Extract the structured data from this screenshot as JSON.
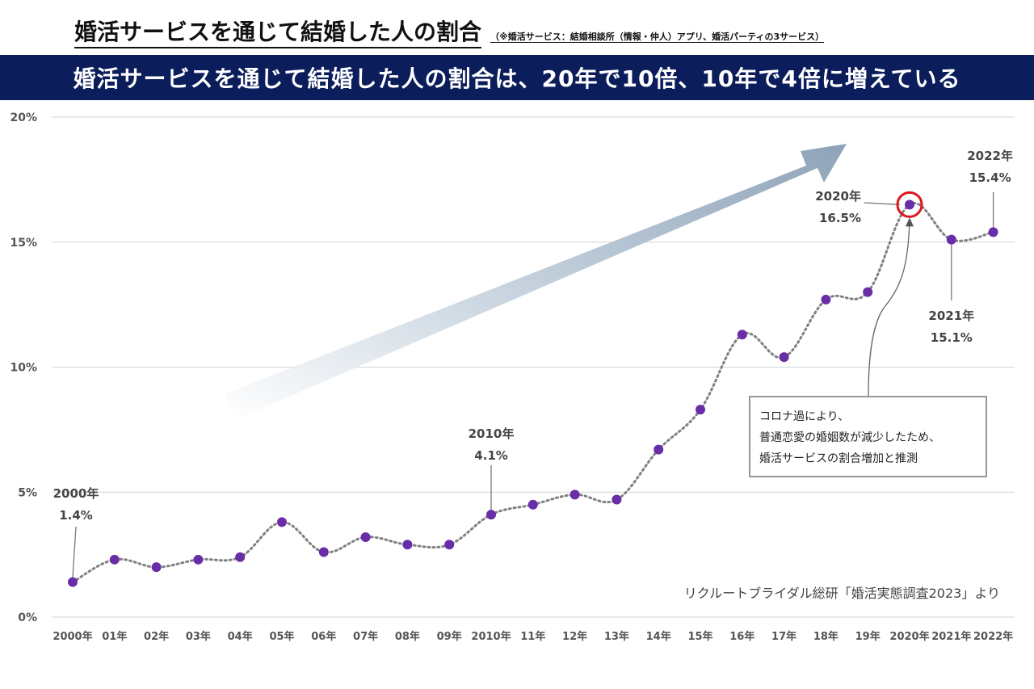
{
  "title": "婚活サービスを通じて結婚した人の割合",
  "title_note": "（※婚活サービス：結婚相談所（情報・仲人）アプリ、婚活パーティの3サービス）",
  "banner": "婚活サービスを通じて結婚した人の割合は、20年で10倍、10年で4倍に増えている",
  "source": "リクルートブライダル総研「婚活実態調査2023」より",
  "callout": {
    "lines": [
      "コロナ過により、",
      "普通恋愛の婚姻数が減少したため、",
      "婚活サービスの割合増加と推測"
    ]
  },
  "colors": {
    "banner": "#0b1e5b",
    "point": "#6a2da8",
    "line": "#808080",
    "highlight": "#e0141e",
    "arrow": "#8ea3b8"
  },
  "chart_data": {
    "type": "line",
    "categories": [
      "2000年",
      "01年",
      "02年",
      "03年",
      "04年",
      "05年",
      "06年",
      "07年",
      "08年",
      "09年",
      "2010年",
      "11年",
      "12年",
      "13年",
      "14年",
      "15年",
      "16年",
      "17年",
      "18年",
      "19年",
      "2020年",
      "2021年",
      "2022年"
    ],
    "values": [
      1.4,
      2.3,
      2.0,
      2.3,
      2.4,
      3.8,
      2.6,
      3.2,
      2.9,
      2.9,
      4.1,
      4.5,
      4.9,
      4.7,
      6.7,
      8.3,
      11.3,
      10.4,
      12.7,
      13.0,
      16.5,
      15.1,
      15.4
    ],
    "ylim": [
      0,
      20
    ],
    "yticks": [
      "0%",
      "5%",
      "10%",
      "15%",
      "20%"
    ],
    "grid": true,
    "annotations": [
      {
        "index": 0,
        "year": "2000年",
        "value": "1.4%"
      },
      {
        "index": 10,
        "year": "2010年",
        "value": "4.1%"
      },
      {
        "index": 20,
        "year": "2020年",
        "value": "16.5%"
      },
      {
        "index": 21,
        "year": "2021年",
        "value": "15.1%"
      },
      {
        "index": 22,
        "year": "2022年",
        "value": "15.4%"
      }
    ]
  }
}
